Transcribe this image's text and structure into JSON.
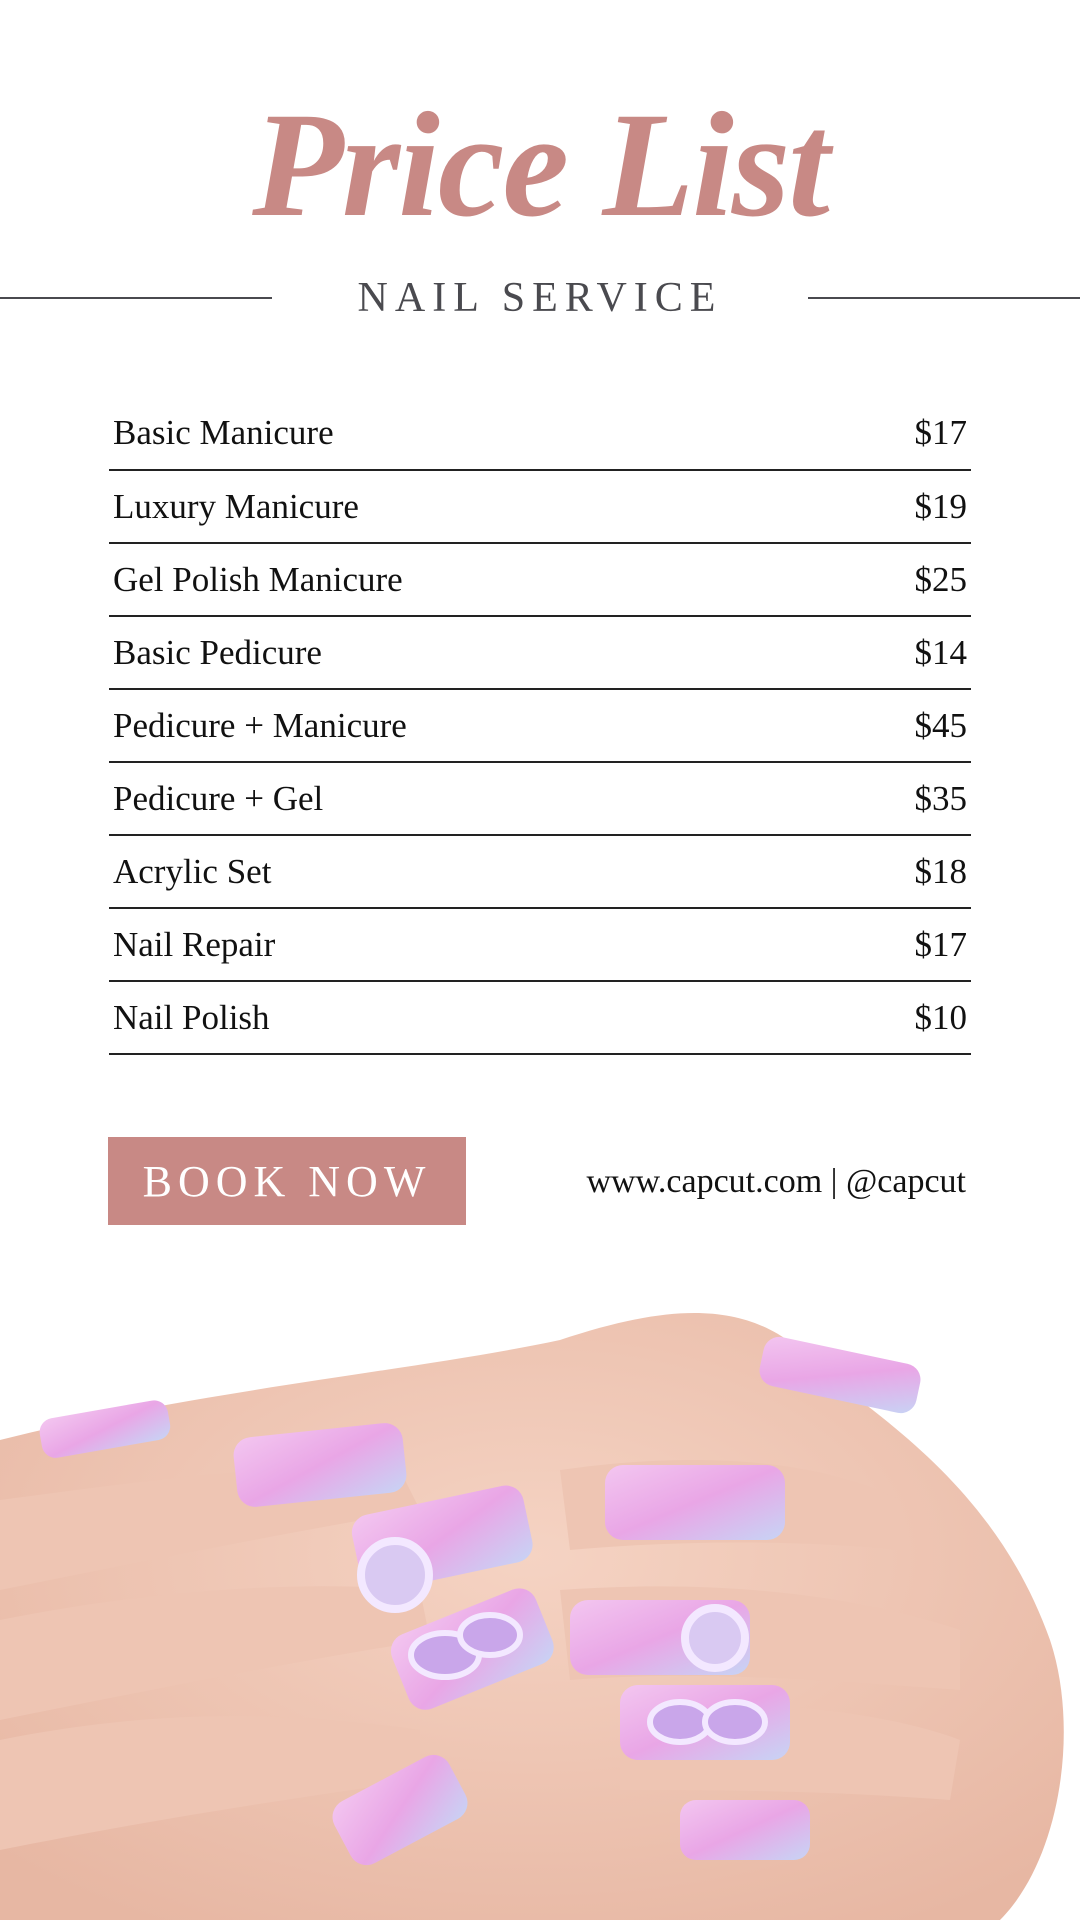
{
  "header": {
    "title": "Price List",
    "subtitle": "NAIL SERVICE"
  },
  "services": [
    {
      "name": "Basic Manicure",
      "price": "$17"
    },
    {
      "name": "Luxury Manicure",
      "price": "$19"
    },
    {
      "name": "Gel Polish Manicure",
      "price": "$25"
    },
    {
      "name": "Basic Pedicure",
      "price": "$14"
    },
    {
      "name": "Pedicure + Manicure",
      "price": "$45"
    },
    {
      "name": "Pedicure + Gel",
      "price": "$35"
    },
    {
      "name": "Acrylic Set",
      "price": "$18"
    },
    {
      "name": "Nail Repair",
      "price": "$17"
    },
    {
      "name": "Nail Polish",
      "price": "$10"
    }
  ],
  "footer": {
    "book_label": "BOOK NOW",
    "contact": "www.capcut.com | @capcut"
  },
  "colors": {
    "accent": "#c88985",
    "text": "#111111",
    "subtitle": "#4a4a4f"
  }
}
